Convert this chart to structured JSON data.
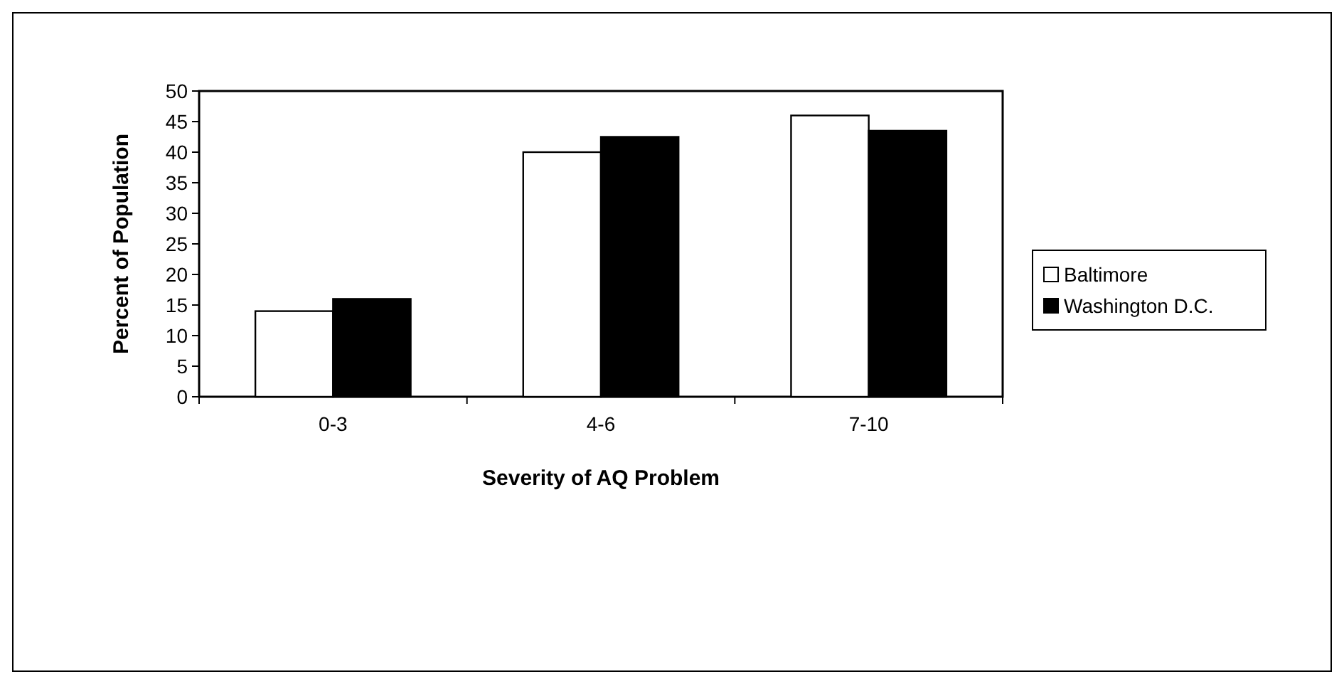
{
  "chart_data": {
    "type": "bar",
    "xlabel": "Severity of AQ Problem",
    "ylabel": "Percent of Population",
    "categories": [
      "0-3",
      "4-6",
      "7-10"
    ],
    "series": [
      {
        "name": "Baltimore",
        "color": "#ffffff",
        "values": [
          14,
          40,
          46
        ]
      },
      {
        "name": "Washington D.C.",
        "color": "#000000",
        "values": [
          16,
          42.5,
          43.5
        ]
      }
    ],
    "ylim": [
      0,
      50
    ],
    "yticks": [
      0,
      5,
      10,
      15,
      20,
      25,
      30,
      35,
      40,
      45,
      50
    ],
    "grid": false,
    "legend": "right"
  }
}
